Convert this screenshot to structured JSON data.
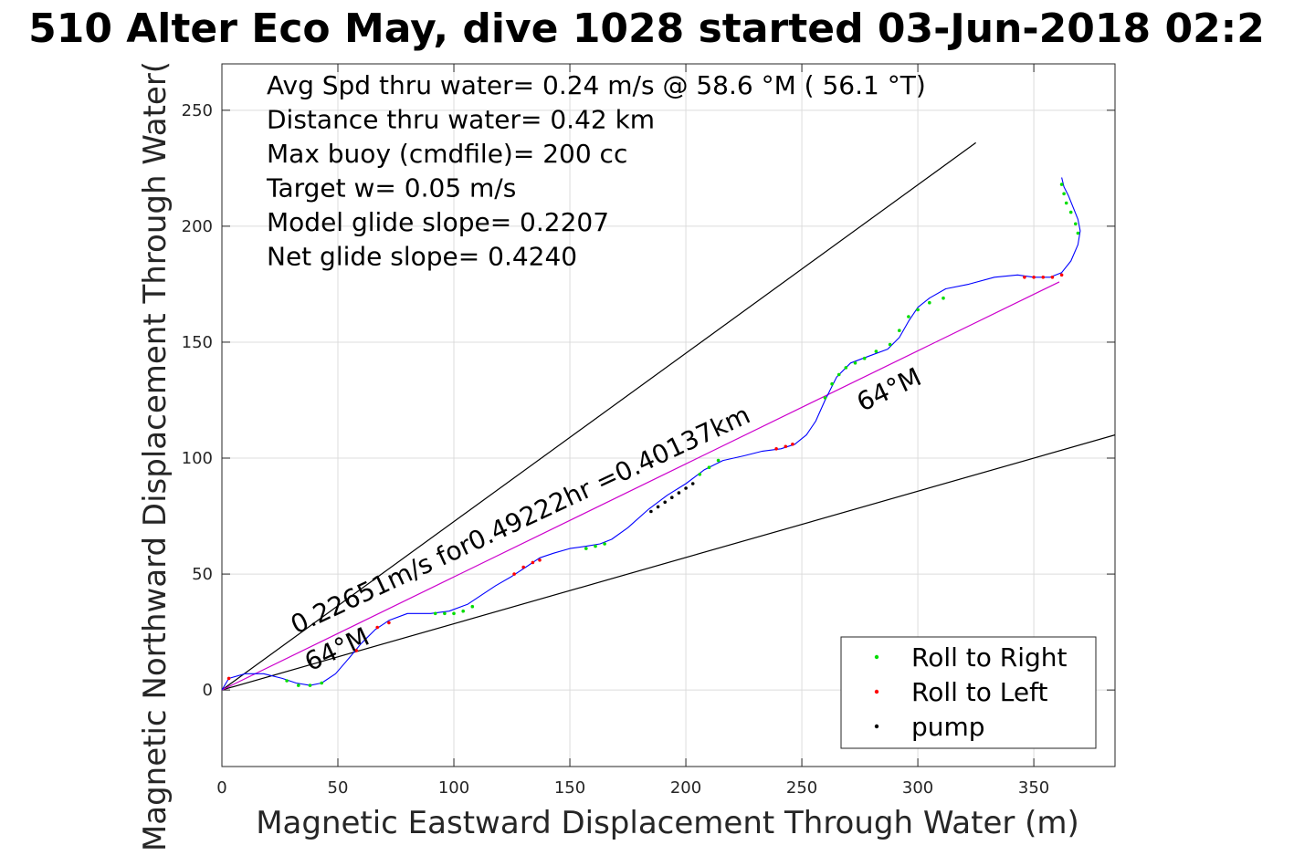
{
  "chart_data": {
    "type": "line",
    "title": "510 Alter Eco May, dive 1028 started 03-Jun-2018 02:2",
    "xlabel": "Magnetic Eastward Displacement Through Water (m)",
    "ylabel": "Magnetic Northward Displacement Through Water(",
    "xlim": [
      0,
      385
    ],
    "ylim": [
      -33,
      270
    ],
    "xticks": [
      0,
      50,
      100,
      150,
      200,
      250,
      300,
      350
    ],
    "yticks": [
      0,
      50,
      100,
      150,
      200,
      250
    ],
    "grid": true,
    "legend_position": "bottom-right",
    "info_lines": [
      "Avg Spd thru water=  0.24 m/s @  58.6 °M ( 56.1 °T)",
      "Distance thru water=  0.42 km",
      "Max buoy (cmdfile)= 200 cc",
      "Target w= 0.05 m/s",
      "Model glide slope= 0.2207",
      "Net glide slope= 0.4240"
    ],
    "annotations": [
      {
        "text": "0.22651m/s for0.49222hr =0.40137km",
        "x": 32,
        "y": 24,
        "rotation": -25.1
      },
      {
        "text": "64°M",
        "x": 38,
        "y": 8,
        "rotation": -25.1
      },
      {
        "text": "64°M",
        "x": 276,
        "y": 120,
        "rotation": -25.1
      }
    ],
    "reference_lines": [
      {
        "name": "upper-bound-line",
        "color": "#000000",
        "x": [
          0,
          325
        ],
        "y": [
          0,
          236
        ]
      },
      {
        "name": "lower-bound-line",
        "color": "#000000",
        "x": [
          0,
          385
        ],
        "y": [
          0,
          110
        ]
      },
      {
        "name": "net-track-line",
        "color": "#cc00cc",
        "x": [
          0,
          361
        ],
        "y": [
          0,
          176
        ]
      }
    ],
    "series": [
      {
        "name": "track",
        "color": "#0000ff",
        "x": [
          0,
          3,
          10,
          18,
          26,
          32,
          38,
          43,
          49,
          55,
          60,
          66,
          72,
          80,
          90,
          98,
          106,
          112,
          118,
          125,
          131,
          137,
          143,
          150,
          157,
          163,
          168,
          175,
          184,
          192,
          200,
          208,
          216,
          225,
          233,
          241,
          247,
          252,
          256,
          260,
          265,
          271,
          279,
          287,
          292,
          296,
          300,
          305,
          312,
          322,
          333,
          343,
          350,
          357,
          362,
          366,
          369,
          370,
          369,
          367,
          365,
          363,
          362
        ],
        "y": [
          0,
          5,
          7,
          7,
          5,
          3,
          2,
          3,
          7,
          14,
          20,
          26,
          30,
          33,
          33,
          34,
          37,
          41,
          45,
          49,
          53,
          57,
          59,
          61,
          62,
          63,
          65,
          70,
          78,
          84,
          89,
          95,
          99,
          101,
          103,
          104,
          106,
          110,
          116,
          125,
          135,
          141,
          144,
          147,
          152,
          159,
          165,
          169,
          173,
          175,
          178,
          179,
          178,
          178,
          180,
          185,
          192,
          198,
          203,
          208,
          213,
          217,
          221
        ]
      },
      {
        "name": "Roll to Right",
        "color": "#00dd00",
        "x": [
          28,
          33,
          38,
          43,
          92,
          96,
          100,
          104,
          108,
          157,
          161,
          165,
          206,
          210,
          214,
          260,
          263,
          266,
          269,
          273,
          277,
          282,
          288,
          292,
          296,
          300,
          305,
          311,
          362,
          363,
          364,
          366,
          368,
          369
        ],
        "y": [
          4,
          2,
          2,
          3,
          33,
          33,
          33,
          34,
          36,
          61,
          62,
          63,
          93,
          96,
          99,
          126,
          132,
          136,
          139,
          141,
          143,
          146,
          149,
          155,
          161,
          164,
          167,
          169,
          218,
          214,
          210,
          206,
          201,
          197
        ]
      },
      {
        "name": "Roll to Left",
        "color": "#ff0000",
        "x": [
          3,
          58,
          67,
          72,
          126,
          130,
          134,
          137,
          239,
          243,
          246,
          346,
          350,
          354,
          358,
          362
        ],
        "y": [
          5,
          17,
          27,
          29,
          50,
          53,
          55,
          56,
          104,
          105,
          106,
          178,
          178,
          178,
          178,
          179
        ]
      },
      {
        "name": "pump",
        "color": "#000000",
        "x": [
          185,
          188,
          191,
          194,
          197,
          200,
          203
        ],
        "y": [
          77,
          79,
          81,
          83,
          85,
          87,
          89
        ]
      }
    ]
  }
}
